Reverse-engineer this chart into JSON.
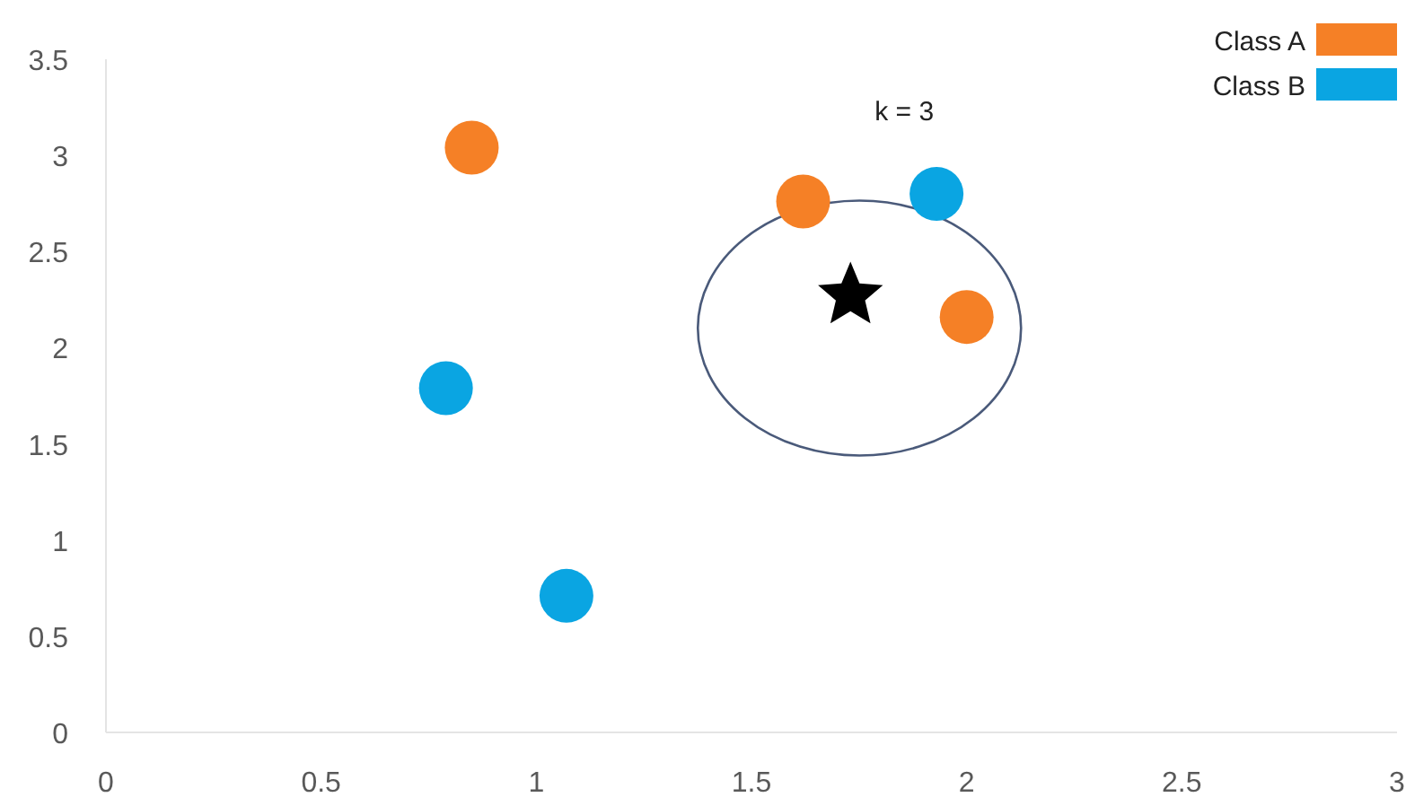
{
  "chart_data": {
    "type": "scatter",
    "xlim": [
      0,
      3
    ],
    "ylim": [
      0,
      3.5
    ],
    "xticks": [
      0,
      0.5,
      1,
      1.5,
      2,
      2.5,
      3
    ],
    "yticks": [
      0,
      0.5,
      1,
      1.5,
      2,
      2.5,
      3,
      3.5
    ],
    "grid": false,
    "legend": "top right",
    "marker": "circle",
    "series": [
      {
        "name": "Class A",
        "color": "#f58026",
        "x": [
          0.85,
          1.62,
          2.0
        ],
        "values": [
          3.04,
          2.76,
          2.16
        ]
      },
      {
        "name": "Class B",
        "color": "#0aa5e2",
        "x": [
          0.79,
          1.07,
          1.93
        ],
        "values": [
          1.79,
          0.71,
          2.8
        ]
      },
      {
        "color": "#000000",
        "marker": "star",
        "x": [
          1.73
        ],
        "values": [
          2.27
        ]
      }
    ],
    "annotations": [
      "k = 3"
    ]
  }
}
